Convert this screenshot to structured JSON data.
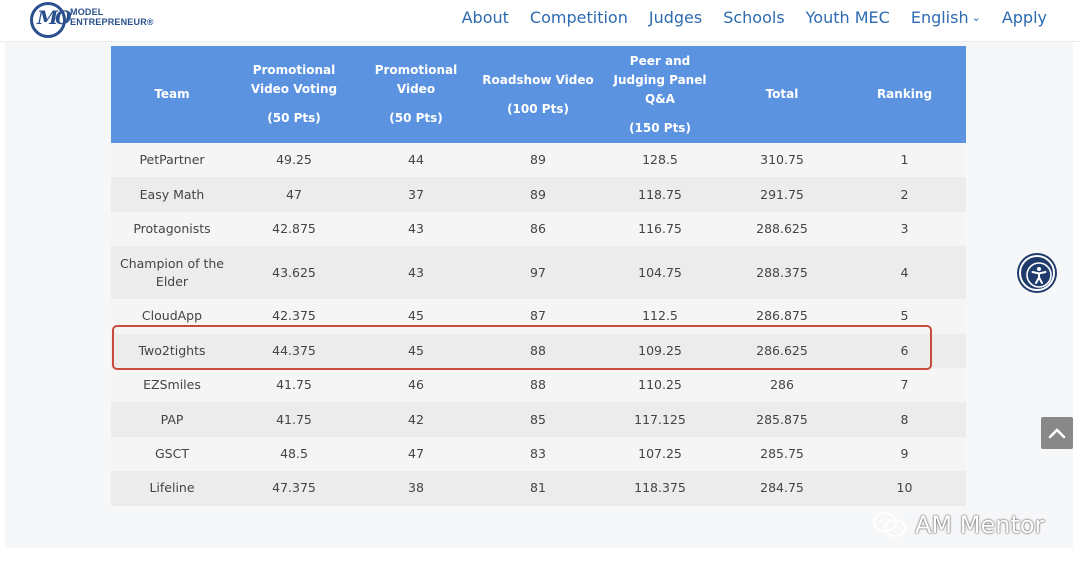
{
  "brand": {
    "logo_mark": "MO",
    "line1": "MODEL",
    "line2": "ENTREPRENEUR®"
  },
  "nav": {
    "about": "About",
    "competition": "Competition",
    "judges": "Judges",
    "schools": "Schools",
    "youth_mec": "Youth MEC",
    "language": "English",
    "apply": "Apply"
  },
  "table": {
    "headers": {
      "team": "Team",
      "voting": "Promotional Video Voting",
      "voting_pts": "(50 Pts)",
      "video": "Promotional Video",
      "video_pts": "(50 Pts)",
      "roadshow": "Roadshow Video",
      "roadshow_pts": "(100 Pts)",
      "qa": "Peer and Judging Panel Q&A",
      "qa_pts": "(150 Pts)",
      "total": "Total",
      "ranking": "Ranking"
    },
    "rows": [
      [
        "PetPartner",
        "49.25",
        "44",
        "89",
        "128.5",
        "310.75",
        "1"
      ],
      [
        "Easy Math",
        "47",
        "37",
        "89",
        "118.75",
        "291.75",
        "2"
      ],
      [
        "Protagonists",
        "42.875",
        "43",
        "86",
        "116.75",
        "288.625",
        "3"
      ],
      [
        "Champion of the Elder",
        "43.625",
        "43",
        "97",
        "104.75",
        "288.375",
        "4"
      ],
      [
        "CloudApp",
        "42.375",
        "45",
        "87",
        "112.5",
        "286.875",
        "5"
      ],
      [
        "Two2tights",
        "44.375",
        "45",
        "88",
        "109.25",
        "286.625",
        "6"
      ],
      [
        "EZSmiles",
        "41.75",
        "46",
        "88",
        "110.25",
        "286",
        "7"
      ],
      [
        "PAP",
        "41.75",
        "42",
        "85",
        "117.125",
        "285.875",
        "8"
      ],
      [
        "GSCT",
        "48.5",
        "47",
        "83",
        "107.25",
        "285.75",
        "9"
      ],
      [
        "Lifeline",
        "47.375",
        "38",
        "81",
        "118.375",
        "284.75",
        "10"
      ]
    ]
  },
  "watermark": "AM Mentor",
  "colors": {
    "header_blue": "#5b93e0",
    "nav_blue": "#2d6bb1",
    "highlight": "#c84b3c",
    "brand": "#2a4f8d"
  },
  "icons": {
    "accessibility": "accessibility-icon",
    "scroll_top": "chevron-up-icon",
    "wechat": "wechat-icon"
  }
}
